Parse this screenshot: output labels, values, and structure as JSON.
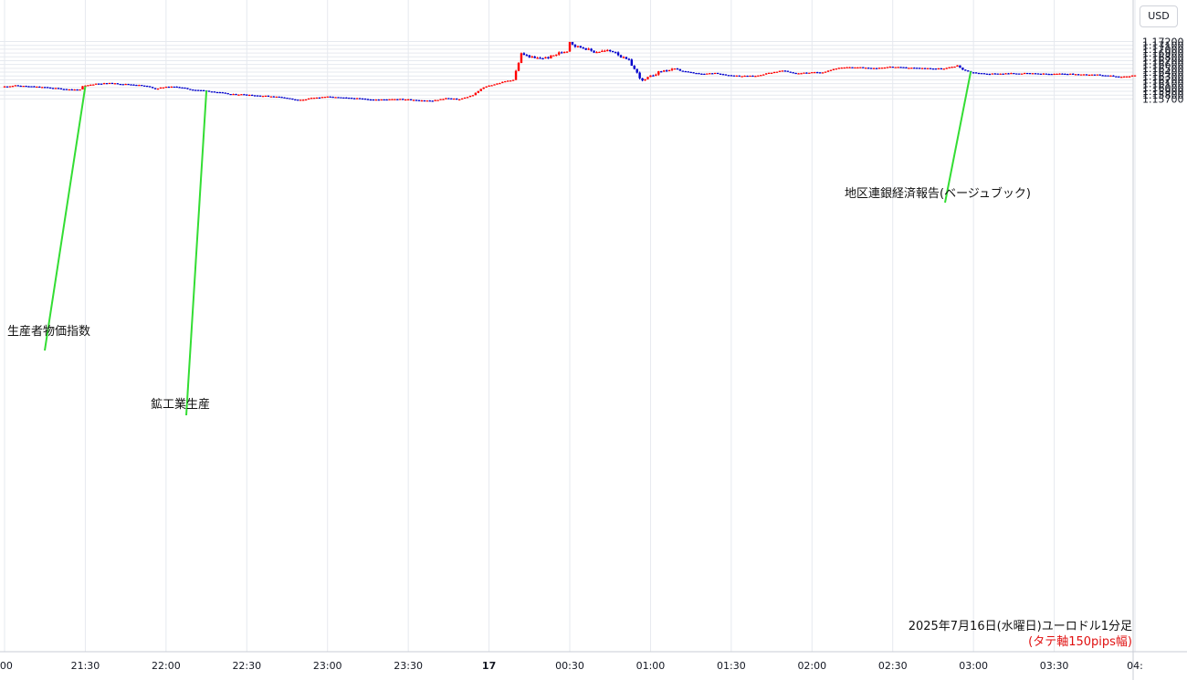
{
  "currency_label": "USD",
  "chart_data": {
    "type": "candlestick",
    "title": "2025年7月16日(水曜日)ユーロドル1分足",
    "subtitle": "(タテ軸150pips幅)",
    "x_ticks": [
      ":00",
      "21:30",
      "22:00",
      "22:30",
      "23:00",
      "23:30",
      "17",
      "00:30",
      "01:00",
      "01:30",
      "02:00",
      "02:30",
      "03:00",
      "03:30",
      "04:"
    ],
    "y_ticks": [
      "1.17200",
      "1.17100",
      "1.17000",
      "1.16900",
      "1.16800",
      "1.16700",
      "1.16600",
      "1.16500",
      "1.16400",
      "1.16300",
      "1.16200",
      "1.16100",
      "1.16000",
      "1.15900",
      "1.15800",
      "1.15700"
    ],
    "ylim": [
      1.1563,
      1.1731
    ],
    "grid": true,
    "up_color": "#ff0000",
    "down_color": "#0000cc",
    "price_path": [
      [
        "21:00",
        1.1602
      ],
      [
        "21:05",
        1.1605
      ],
      [
        "21:10",
        1.1603
      ],
      [
        "21:15",
        1.1601
      ],
      [
        "21:20",
        1.1598
      ],
      [
        "21:25",
        1.1595
      ],
      [
        "21:29",
        1.1594
      ],
      [
        "21:30",
        1.1603
      ],
      [
        "21:35",
        1.161
      ],
      [
        "21:40",
        1.1611
      ],
      [
        "21:45",
        1.1609
      ],
      [
        "21:50",
        1.1607
      ],
      [
        "21:55",
        1.1602
      ],
      [
        "21:57",
        1.1596
      ],
      [
        "22:00",
        1.1601
      ],
      [
        "22:05",
        1.1602
      ],
      [
        "22:10",
        1.1595
      ],
      [
        "22:15",
        1.1592
      ],
      [
        "22:20",
        1.1588
      ],
      [
        "22:25",
        1.1582
      ],
      [
        "22:30",
        1.1582
      ],
      [
        "22:35",
        1.1579
      ],
      [
        "22:40",
        1.1577
      ],
      [
        "22:45",
        1.1574
      ],
      [
        "22:50",
        1.1566
      ],
      [
        "22:55",
        1.1572
      ],
      [
        "23:00",
        1.1576
      ],
      [
        "23:05",
        1.1574
      ],
      [
        "23:10",
        1.1572
      ],
      [
        "23:15",
        1.157
      ],
      [
        "23:20",
        1.1568
      ],
      [
        "23:25",
        1.157
      ],
      [
        "23:30",
        1.1569
      ],
      [
        "23:35",
        1.1567
      ],
      [
        "23:40",
        1.1565
      ],
      [
        "23:45",
        1.1572
      ],
      [
        "23:50",
        1.1569
      ],
      [
        "23:55",
        1.158
      ],
      [
        "23:58",
        1.1596
      ],
      [
        "00:00",
        1.1603
      ],
      [
        "00:05",
        1.1612
      ],
      [
        "00:08",
        1.1618
      ],
      [
        "00:10",
        1.162
      ],
      [
        "00:13",
        1.1688
      ],
      [
        "00:18",
        1.1676
      ],
      [
        "00:23",
        1.1678
      ],
      [
        "00:27",
        1.169
      ],
      [
        "00:30",
        1.1696
      ],
      [
        "00:31",
        1.172
      ],
      [
        "00:33",
        1.1708
      ],
      [
        "00:36",
        1.1704
      ],
      [
        "00:40",
        1.1693
      ],
      [
        "00:45",
        1.1696
      ],
      [
        "00:48",
        1.1693
      ],
      [
        "00:50",
        1.168
      ],
      [
        "00:53",
        1.167
      ],
      [
        "00:55",
        1.1648
      ],
      [
        "00:58",
        1.1616
      ],
      [
        "01:00",
        1.1625
      ],
      [
        "01:02",
        1.1633
      ],
      [
        "01:05",
        1.1643
      ],
      [
        "01:10",
        1.1647
      ],
      [
        "01:15",
        1.164
      ],
      [
        "01:20",
        1.1635
      ],
      [
        "01:25",
        1.1638
      ],
      [
        "01:30",
        1.1632
      ],
      [
        "01:35",
        1.163
      ],
      [
        "01:40",
        1.163
      ],
      [
        "01:45",
        1.1638
      ],
      [
        "01:50",
        1.1644
      ],
      [
        "01:55",
        1.1637
      ],
      [
        "02:00",
        1.1639
      ],
      [
        "02:05",
        1.164
      ],
      [
        "02:10",
        1.165
      ],
      [
        "02:15",
        1.1653
      ],
      [
        "02:20",
        1.1652
      ],
      [
        "02:25",
        1.1651
      ],
      [
        "02:30",
        1.1654
      ],
      [
        "02:35",
        1.1652
      ],
      [
        "02:40",
        1.1651
      ],
      [
        "02:45",
        1.165
      ],
      [
        "02:50",
        1.1649
      ],
      [
        "02:55",
        1.1657
      ],
      [
        "02:57",
        1.1647
      ],
      [
        "03:00",
        1.164
      ],
      [
        "03:05",
        1.1636
      ],
      [
        "03:10",
        1.1636
      ],
      [
        "03:15",
        1.1637
      ],
      [
        "03:20",
        1.1637
      ],
      [
        "03:25",
        1.1636
      ],
      [
        "03:30",
        1.1635
      ],
      [
        "03:35",
        1.1636
      ],
      [
        "03:40",
        1.1634
      ],
      [
        "03:45",
        1.1634
      ],
      [
        "03:50",
        1.1632
      ],
      [
        "03:55",
        1.1628
      ],
      [
        "03:59",
        1.1629
      ],
      [
        "04:00",
        1.1631
      ]
    ],
    "annotations": [
      {
        "label": "生産者物価指数",
        "time": "21:30",
        "price": 1.1603
      },
      {
        "label": "鉱工業生産",
        "time": "22:15",
        "price": 1.1592
      },
      {
        "label": "地区連銀経済報告(ベージュブック)",
        "time": "02:59",
        "price": 1.1642
      }
    ]
  }
}
